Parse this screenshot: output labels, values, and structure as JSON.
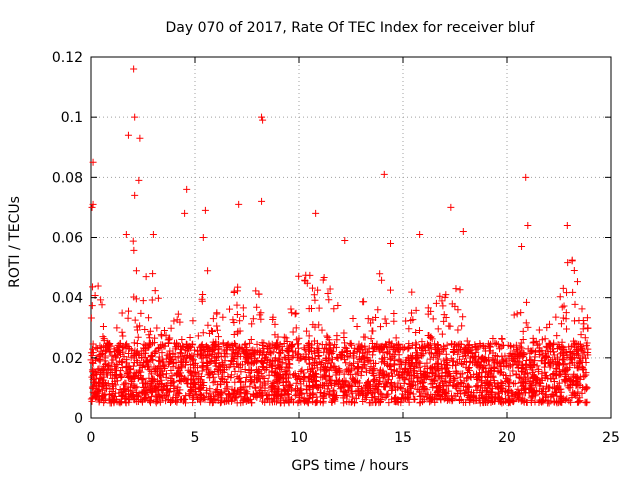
{
  "chart_data": {
    "type": "scatter",
    "title": "Day 070 of 2017, Rate Of TEC Index for receiver bluf",
    "xlabel": "GPS time / hours",
    "ylabel": "ROTI / TECUs",
    "xlim": [
      0,
      25
    ],
    "ylim": [
      0,
      0.12
    ],
    "xticks": [
      0,
      5,
      10,
      15,
      20,
      25
    ],
    "xtick_labels": [
      "0",
      "5",
      "10",
      "15",
      "20",
      "25"
    ],
    "yticks": [
      0,
      0.02,
      0.04,
      0.06,
      0.08,
      0.1,
      0.12
    ],
    "ytick_labels": [
      "0",
      "0.02",
      "0.04",
      "0.06",
      "0.08",
      "0.1",
      "0.12"
    ],
    "grid": true,
    "marker": "+",
    "color": "#ff0000",
    "x_data_range": [
      0,
      23.9
    ],
    "dense_band": [
      0.005,
      0.025
    ],
    "notable_points": [
      {
        "x": 2.05,
        "y": 0.116
      },
      {
        "x": 2.1,
        "y": 0.1
      },
      {
        "x": 8.2,
        "y": 0.1
      },
      {
        "x": 8.25,
        "y": 0.099
      },
      {
        "x": 1.8,
        "y": 0.094
      },
      {
        "x": 2.35,
        "y": 0.093
      },
      {
        "x": 0.1,
        "y": 0.085
      },
      {
        "x": 14.1,
        "y": 0.081
      },
      {
        "x": 20.9,
        "y": 0.08
      },
      {
        "x": 2.3,
        "y": 0.079
      },
      {
        "x": 4.6,
        "y": 0.076
      },
      {
        "x": 2.1,
        "y": 0.074
      },
      {
        "x": 8.2,
        "y": 0.072
      },
      {
        "x": 0.05,
        "y": 0.07
      },
      {
        "x": 0.1,
        "y": 0.071
      },
      {
        "x": 17.3,
        "y": 0.07
      },
      {
        "x": 7.1,
        "y": 0.071
      },
      {
        "x": 5.5,
        "y": 0.069
      },
      {
        "x": 10.8,
        "y": 0.068
      },
      {
        "x": 4.5,
        "y": 0.068
      },
      {
        "x": 22.9,
        "y": 0.064
      },
      {
        "x": 21.0,
        "y": 0.064
      },
      {
        "x": 1.7,
        "y": 0.061
      },
      {
        "x": 3.0,
        "y": 0.061
      },
      {
        "x": 15.8,
        "y": 0.061
      },
      {
        "x": 12.2,
        "y": 0.059
      },
      {
        "x": 17.9,
        "y": 0.062
      },
      {
        "x": 14.4,
        "y": 0.058
      },
      {
        "x": 20.7,
        "y": 0.057
      },
      {
        "x": 5.4,
        "y": 0.06
      }
    ],
    "activity_profile": [
      [
        0.0,
        0.06
      ],
      [
        0.5,
        0.04
      ],
      [
        1.0,
        0.028
      ],
      [
        1.5,
        0.035
      ],
      [
        2.0,
        0.06
      ],
      [
        2.5,
        0.055
      ],
      [
        3.0,
        0.05
      ],
      [
        3.5,
        0.03
      ],
      [
        4.0,
        0.035
      ],
      [
        4.5,
        0.045
      ],
      [
        5.0,
        0.03
      ],
      [
        5.5,
        0.055
      ],
      [
        6.0,
        0.035
      ],
      [
        6.5,
        0.035
      ],
      [
        7.0,
        0.045
      ],
      [
        7.5,
        0.04
      ],
      [
        8.0,
        0.05
      ],
      [
        8.5,
        0.035
      ],
      [
        9.0,
        0.032
      ],
      [
        9.5,
        0.035
      ],
      [
        10.0,
        0.05
      ],
      [
        10.5,
        0.05
      ],
      [
        11.0,
        0.052
      ],
      [
        11.5,
        0.045
      ],
      [
        12.0,
        0.035
      ],
      [
        12.5,
        0.04
      ],
      [
        13.0,
        0.04
      ],
      [
        13.5,
        0.035
      ],
      [
        14.0,
        0.055
      ],
      [
        14.5,
        0.04
      ],
      [
        15.0,
        0.03
      ],
      [
        15.5,
        0.045
      ],
      [
        16.0,
        0.035
      ],
      [
        16.5,
        0.045
      ],
      [
        17.0,
        0.04
      ],
      [
        17.5,
        0.05
      ],
      [
        18.0,
        0.035
      ],
      [
        18.5,
        0.025
      ],
      [
        19.0,
        0.025
      ],
      [
        19.5,
        0.028
      ],
      [
        20.0,
        0.025
      ],
      [
        20.5,
        0.04
      ],
      [
        21.0,
        0.04
      ],
      [
        21.5,
        0.03
      ],
      [
        22.0,
        0.032
      ],
      [
        22.5,
        0.04
      ],
      [
        23.0,
        0.058
      ],
      [
        23.5,
        0.045
      ],
      [
        23.9,
        0.04
      ]
    ]
  }
}
